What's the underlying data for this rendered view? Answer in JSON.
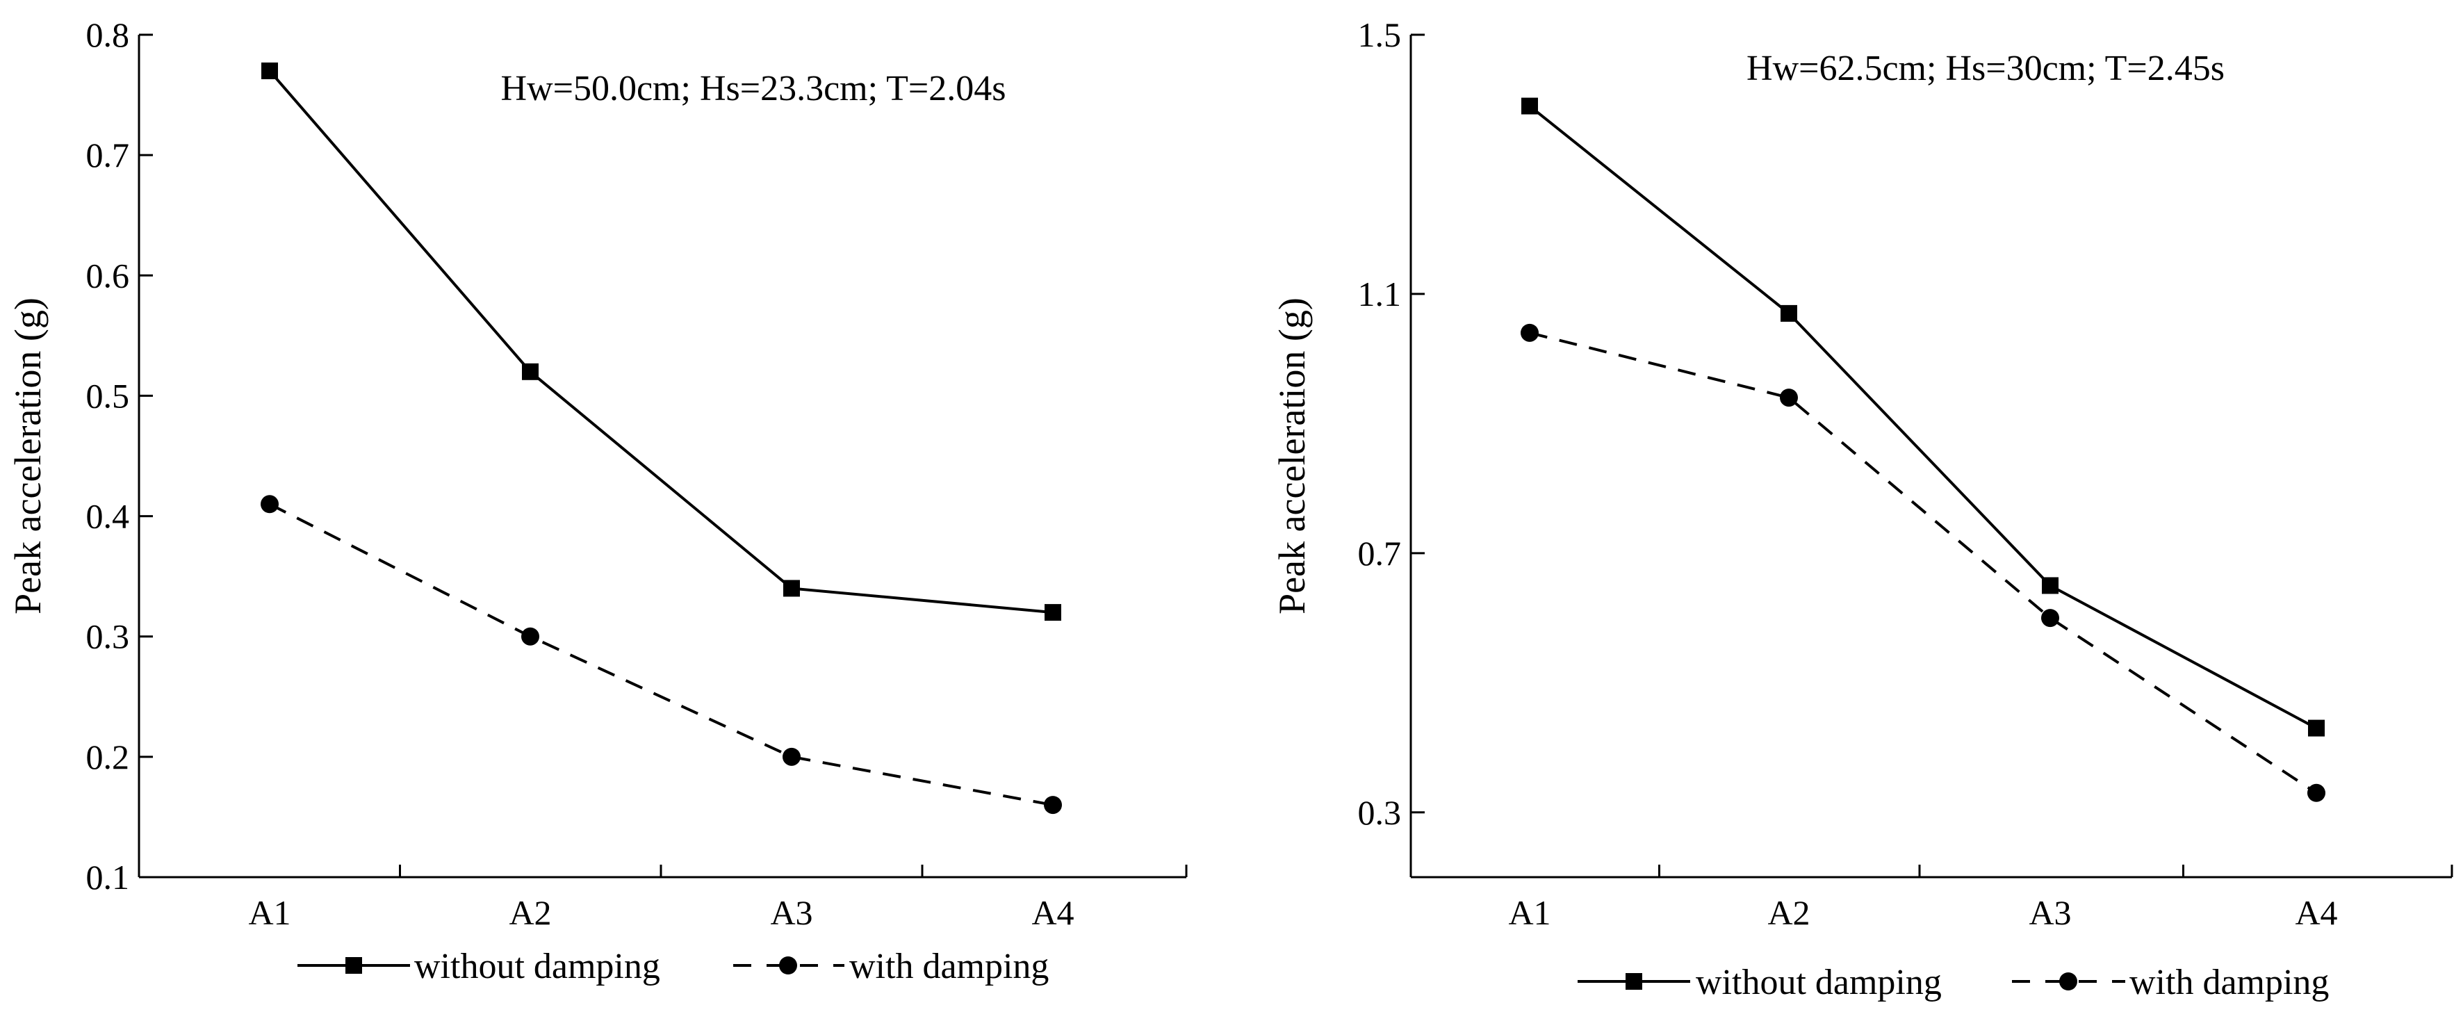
{
  "chart_data": [
    {
      "type": "line",
      "annotation": "Hw=50.0cm; Hs=23.3cm; T=2.04s",
      "xlabel": "",
      "ylabel": "Peak acceleration (g)",
      "categories": [
        "A1",
        "A2",
        "A3",
        "A4"
      ],
      "ylim": [
        0.1,
        0.8
      ],
      "yticks": [
        0.1,
        0.2,
        0.3,
        0.4,
        0.5,
        0.6,
        0.7,
        0.8
      ],
      "ytick_labels": [
        "0.1",
        "0.2",
        "0.3",
        "0.4",
        "0.5",
        "0.6",
        "0.7",
        "0.8"
      ],
      "series": [
        {
          "name": "without damping",
          "style": "solid",
          "marker": "square",
          "values": [
            0.77,
            0.52,
            0.34,
            0.32
          ]
        },
        {
          "name": "with damping",
          "style": "dashed",
          "marker": "circle",
          "values": [
            0.41,
            0.3,
            0.2,
            0.16
          ]
        }
      ],
      "legend_position": "bottom"
    },
    {
      "type": "line",
      "annotation": "Hw=62.5cm; Hs=30cm; T=2.45s",
      "xlabel": "",
      "ylabel": "Peak acceleration (g)",
      "categories": [
        "A1",
        "A2",
        "A3",
        "A4"
      ],
      "ylim": [
        0.2,
        1.5
      ],
      "yticks": [
        0.3,
        0.7,
        1.1,
        1.5
      ],
      "ytick_labels": [
        "0.3",
        "0.7",
        "1.1",
        "1.5"
      ],
      "series": [
        {
          "name": "without damping",
          "style": "solid",
          "marker": "square",
          "values": [
            1.39,
            1.07,
            0.65,
            0.43
          ]
        },
        {
          "name": "with damping",
          "style": "dashed",
          "marker": "circle",
          "values": [
            1.04,
            0.94,
            0.6,
            0.33
          ]
        }
      ],
      "legend_position": "bottom"
    }
  ]
}
